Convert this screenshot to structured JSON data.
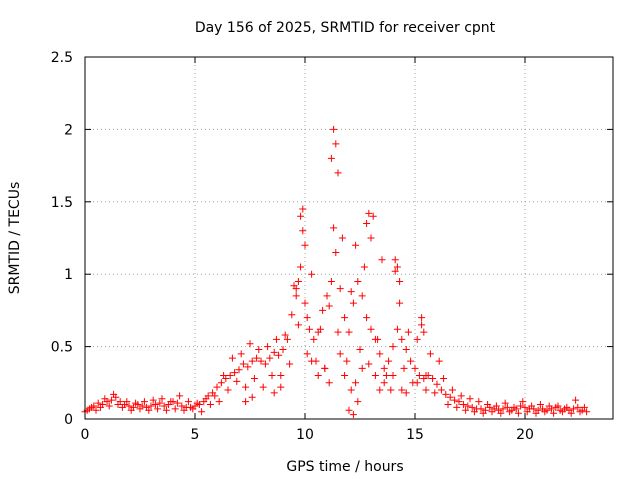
{
  "chart_data": {
    "type": "scatter",
    "title": "Day 156 of 2025, SRMTID for receiver cpnt",
    "xlabel": "GPS time / hours",
    "ylabel": "SRMTID / TECUs",
    "xlim": [
      0,
      24
    ],
    "ylim": [
      0,
      2.5
    ],
    "xticks": [
      0,
      5,
      10,
      15,
      20
    ],
    "xtick_labels": [
      "0",
      "5",
      "10",
      "15",
      "20"
    ],
    "yticks": [
      0,
      0.5,
      1,
      1.5,
      2,
      2.5
    ],
    "ytick_labels": [
      "0",
      "0.5",
      "1",
      "1.5",
      "2",
      "2.5"
    ],
    "grid": true,
    "marker": "+",
    "color": "#ff0000",
    "series": [
      {
        "name": "SRMTID",
        "x": [
          0.0,
          0.2,
          0.4,
          0.6,
          0.8,
          1.0,
          1.2,
          1.4,
          1.6,
          1.8,
          2.0,
          2.2,
          2.4,
          2.6,
          2.8,
          3.0,
          3.2,
          3.4,
          3.6,
          3.8,
          4.0,
          4.2,
          4.4,
          4.6,
          4.8,
          5.0,
          5.2,
          5.4,
          5.6,
          5.8,
          6.0,
          6.2,
          6.4,
          6.6,
          6.8,
          7.0,
          7.2,
          7.4,
          7.6,
          7.8,
          8.0,
          8.2,
          8.4,
          8.6,
          8.8,
          9.0,
          9.2,
          9.4,
          9.6,
          9.8,
          10.0,
          10.2,
          10.4,
          10.6,
          10.8,
          11.0,
          11.2,
          11.4,
          11.6,
          11.8,
          12.0,
          12.2,
          12.4,
          12.6,
          12.8,
          13.0,
          13.2,
          13.4,
          13.6,
          13.8,
          14.0,
          14.2,
          14.4,
          14.6,
          14.8,
          15.0,
          15.2,
          15.4,
          15.6,
          15.8,
          16.0,
          16.2,
          16.4,
          16.6,
          16.8,
          17.0,
          17.2,
          17.4,
          17.6,
          17.8,
          18.0,
          18.2,
          18.4,
          18.6,
          18.8,
          19.0,
          19.2,
          19.4,
          19.6,
          19.8,
          20.0,
          20.2,
          20.4,
          20.6,
          20.8,
          21.0,
          21.2,
          21.4,
          21.6,
          21.8,
          22.0,
          22.2,
          22.4,
          22.6,
          22.8,
          0.1,
          0.3,
          0.5,
          0.7,
          0.9,
          1.1,
          1.3,
          1.5,
          1.7,
          1.9,
          2.1,
          2.3,
          2.5,
          2.7,
          2.9,
          3.1,
          3.3,
          3.5,
          3.7,
          3.9,
          4.1,
          4.3,
          4.5,
          4.7,
          4.9,
          5.1,
          5.3,
          5.5,
          5.7,
          5.9,
          6.1,
          6.3,
          6.5,
          6.7,
          6.9,
          7.1,
          7.3,
          7.5,
          7.7,
          7.9,
          8.1,
          8.3,
          8.5,
          8.7,
          8.9,
          9.1,
          9.3,
          9.5,
          9.7,
          9.9,
          10.1,
          10.3,
          10.5,
          10.7,
          10.9,
          11.1,
          11.3,
          11.5,
          11.7,
          11.9,
          12.1,
          12.3,
          12.5,
          12.7,
          12.9,
          13.1,
          13.3,
          13.5,
          13.7,
          13.9,
          14.1,
          14.3,
          14.5,
          14.7,
          14.9,
          15.1,
          15.3,
          15.5,
          15.7,
          15.9,
          16.1,
          16.3,
          16.5,
          16.7,
          16.9,
          17.1,
          17.3,
          17.5,
          17.7,
          17.9,
          18.1,
          18.3,
          18.5,
          18.7,
          18.9,
          19.1,
          19.3,
          19.5,
          19.7,
          19.9,
          20.1,
          20.3,
          20.5,
          20.7,
          20.9,
          21.1,
          21.3,
          21.5,
          21.7,
          21.9,
          22.1,
          22.3,
          22.5,
          22.7,
          9.8,
          9.9,
          10.0,
          11.2,
          11.3,
          11.4,
          11.5,
          12.8,
          12.9,
          13.0,
          14.1,
          14.2,
          14.3,
          15.3,
          15.4,
          9.6,
          9.7,
          10.1,
          10.3,
          10.6,
          10.9,
          11.1,
          11.6,
          11.8,
          12.1,
          12.3,
          12.6,
          13.2,
          13.4,
          13.6,
          14.0,
          14.4,
          14.6,
          15.1,
          15.5,
          7.3,
          7.6,
          8.6,
          8.9,
          12.0,
          12.2,
          12.4
        ],
        "y": [
          0.05,
          0.07,
          0.09,
          0.11,
          0.1,
          0.12,
          0.13,
          0.15,
          0.12,
          0.1,
          0.09,
          0.08,
          0.1,
          0.09,
          0.08,
          0.09,
          0.1,
          0.11,
          0.09,
          0.1,
          0.12,
          0.11,
          0.09,
          0.08,
          0.08,
          0.09,
          0.1,
          0.12,
          0.16,
          0.18,
          0.22,
          0.25,
          0.28,
          0.3,
          0.32,
          0.34,
          0.38,
          0.36,
          0.4,
          0.42,
          0.4,
          0.38,
          0.42,
          0.46,
          0.44,
          0.48,
          0.55,
          0.72,
          0.9,
          1.05,
          0.8,
          0.62,
          0.55,
          0.6,
          0.75,
          0.85,
          0.95,
          1.15,
          0.9,
          0.7,
          0.6,
          0.8,
          0.95,
          0.85,
          0.7,
          0.62,
          0.55,
          0.45,
          0.35,
          0.4,
          0.5,
          0.62,
          0.55,
          0.48,
          0.4,
          0.35,
          0.3,
          0.28,
          0.3,
          0.28,
          0.24,
          0.2,
          0.17,
          0.15,
          0.13,
          0.12,
          0.1,
          0.09,
          0.08,
          0.07,
          0.07,
          0.06,
          0.08,
          0.07,
          0.06,
          0.07,
          0.08,
          0.06,
          0.07,
          0.09,
          0.08,
          0.07,
          0.07,
          0.06,
          0.07,
          0.06,
          0.07,
          0.08,
          0.06,
          0.07,
          0.06,
          0.07,
          0.08,
          0.06,
          0.05,
          0.06,
          0.08,
          0.06,
          0.08,
          0.14,
          0.09,
          0.17,
          0.1,
          0.08,
          0.12,
          0.06,
          0.11,
          0.07,
          0.12,
          0.06,
          0.13,
          0.07,
          0.14,
          0.06,
          0.12,
          0.07,
          0.16,
          0.06,
          0.12,
          0.07,
          0.11,
          0.05,
          0.14,
          0.1,
          0.16,
          0.12,
          0.3,
          0.2,
          0.42,
          0.26,
          0.45,
          0.22,
          0.52,
          0.28,
          0.48,
          0.22,
          0.5,
          0.3,
          0.55,
          0.3,
          0.58,
          0.38,
          0.92,
          0.65,
          1.45,
          0.45,
          1.0,
          0.4,
          0.62,
          0.35,
          0.78,
          1.32,
          0.6,
          1.25,
          0.4,
          0.88,
          1.2,
          0.48,
          1.05,
          0.38,
          1.4,
          0.55,
          1.1,
          0.3,
          0.2,
          1.02,
          0.8,
          0.35,
          0.6,
          0.25,
          0.55,
          0.65,
          0.2,
          0.45,
          0.18,
          0.4,
          0.28,
          0.1,
          0.2,
          0.08,
          0.16,
          0.06,
          0.14,
          0.05,
          0.12,
          0.04,
          0.1,
          0.05,
          0.09,
          0.04,
          0.11,
          0.05,
          0.08,
          0.04,
          0.12,
          0.05,
          0.09,
          0.04,
          0.1,
          0.05,
          0.09,
          0.04,
          0.09,
          0.05,
          0.08,
          0.04,
          0.13,
          0.05,
          0.08,
          1.4,
          1.3,
          1.2,
          1.8,
          2.0,
          1.9,
          1.7,
          1.35,
          1.42,
          1.25,
          1.1,
          1.05,
          0.95,
          0.7,
          0.6,
          0.85,
          0.95,
          0.7,
          0.4,
          0.3,
          0.35,
          0.25,
          0.45,
          0.3,
          0.2,
          0.25,
          0.35,
          0.3,
          0.2,
          0.25,
          0.3,
          0.2,
          0.18,
          0.25,
          0.3,
          0.12,
          0.15,
          0.18,
          0.22,
          0.06,
          0.03,
          0.12
        ]
      }
    ]
  }
}
